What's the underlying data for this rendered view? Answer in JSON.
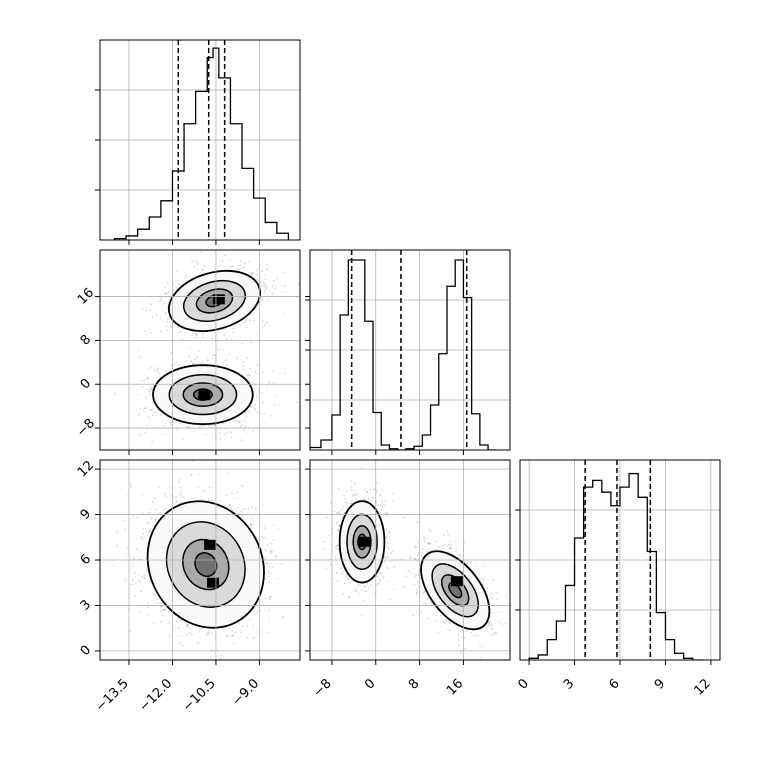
{
  "chart_data": {
    "type": "corner",
    "grid": true,
    "colors": {
      "line": "#000000",
      "grid": "#b0b0b0",
      "scatter": "#6e6e6e"
    },
    "parameters": [
      {
        "label": "",
        "range": [
          -14.5,
          -7.6
        ],
        "ticks": [
          -13.5,
          -12.0,
          -10.5,
          -9.0
        ],
        "tick_labels": [
          "−13.5",
          "−12.0",
          "−10.5",
          "−9.0"
        ]
      },
      {
        "label": "",
        "range": [
          -12.0,
          24.5
        ],
        "ticks": [
          -8,
          0,
          8,
          16
        ],
        "tick_labels": [
          "−8",
          "0",
          "8",
          "16"
        ]
      },
      {
        "label": "",
        "range": [
          -0.6,
          12.6
        ],
        "ticks": [
          0,
          3,
          6,
          9,
          12
        ],
        "tick_labels": [
          "0",
          "3",
          "6",
          "9",
          "12"
        ]
      }
    ],
    "panels": [
      {
        "kind": "histogram",
        "param": 0,
        "bin_edges": [
          -14.0,
          -13.6,
          -13.2,
          -12.8,
          -12.4,
          -12.0,
          -11.6,
          -11.2,
          -10.8,
          -10.6,
          -10.4,
          -10.0,
          -9.6,
          -9.2,
          -8.8,
          -8.4,
          -8.0
        ],
        "counts": [
          1,
          3,
          8,
          17,
          29,
          51,
          86,
          110,
          135,
          142,
          120,
          86,
          53,
          31,
          13,
          5
        ],
        "ymax": 148,
        "quantiles": [
          -11.8,
          -10.75,
          -10.2
        ]
      },
      {
        "kind": "histogram",
        "param": 1,
        "bin_edges": [
          -12.0,
          -10.0,
          -8.0,
          -6.5,
          -5.0,
          -3.5,
          -2.0,
          -0.5,
          1.0,
          2.5,
          4.0,
          5.5,
          7.0,
          8.5,
          10.0,
          11.5,
          13.0,
          14.5,
          16.0,
          17.5,
          19.0,
          20.5,
          22.0
        ],
        "counts": [
          2,
          8,
          28,
          108,
          152,
          152,
          103,
          30,
          4,
          1,
          0,
          1,
          3,
          12,
          36,
          77,
          131,
          152,
          122,
          29,
          4,
          0
        ],
        "ymax": 160,
        "quantiles": [
          -4.4,
          4.6,
          16.6
        ]
      },
      {
        "kind": "histogram",
        "param": 2,
        "bin_edges": [
          0.0,
          0.6,
          1.2,
          1.8,
          2.4,
          3.0,
          3.6,
          4.2,
          4.8,
          5.4,
          6.0,
          6.6,
          7.2,
          7.8,
          8.4,
          9.0,
          9.6,
          10.2,
          10.8,
          11.4
        ],
        "counts": [
          1,
          3,
          12,
          23,
          44,
          72,
          102,
          106,
          99,
          91,
          102,
          110,
          96,
          64,
          28,
          12,
          4,
          1,
          0
        ],
        "ymax": 118,
        "quantiles": [
          3.7,
          5.8,
          8.0
        ]
      },
      {
        "kind": "density2d",
        "x_param": 0,
        "y_param": 1,
        "components": [
          {
            "center": [
              -10.55,
              15.2
            ],
            "sigma": [
              0.75,
              2.4
            ],
            "rotation_deg": 16
          },
          {
            "center": [
              -10.95,
              -1.9
            ],
            "sigma": [
              0.8,
              2.5
            ],
            "rotation_deg": 0
          }
        ],
        "peaks": [
          [
            -10.4,
            15.5
          ],
          [
            -10.9,
            -2.0
          ]
        ]
      },
      {
        "kind": "density2d",
        "x_param": 0,
        "y_param": 2,
        "components": [
          {
            "center": [
              -11.0,
              7.0
            ],
            "sigma": [
              0.55,
              1.1
            ],
            "rotation_deg": 0
          },
          {
            "center": [
              -10.8,
              4.5
            ],
            "sigma": [
              0.6,
              1.1
            ],
            "rotation_deg": 0
          },
          {
            "center": [
              -10.85,
              5.7
            ],
            "sigma": [
              0.9,
              2.0
            ],
            "rotation_deg": 28
          }
        ],
        "peaks": [
          [
            -10.7,
            7.0
          ],
          [
            -10.6,
            4.5
          ]
        ]
      },
      {
        "kind": "density2d",
        "x_param": 1,
        "y_param": 2,
        "components": [
          {
            "center": [
              -2.5,
              7.2
            ],
            "sigma": [
              1.9,
              1.25
            ],
            "rotation_deg": 0
          },
          {
            "center": [
              14.5,
              4.0
            ],
            "sigma": [
              2.1,
              1.4
            ],
            "rotation_deg": 38
          }
        ],
        "peaks": [
          [
            -2.0,
            7.2
          ],
          [
            14.8,
            4.6
          ]
        ]
      }
    ]
  }
}
